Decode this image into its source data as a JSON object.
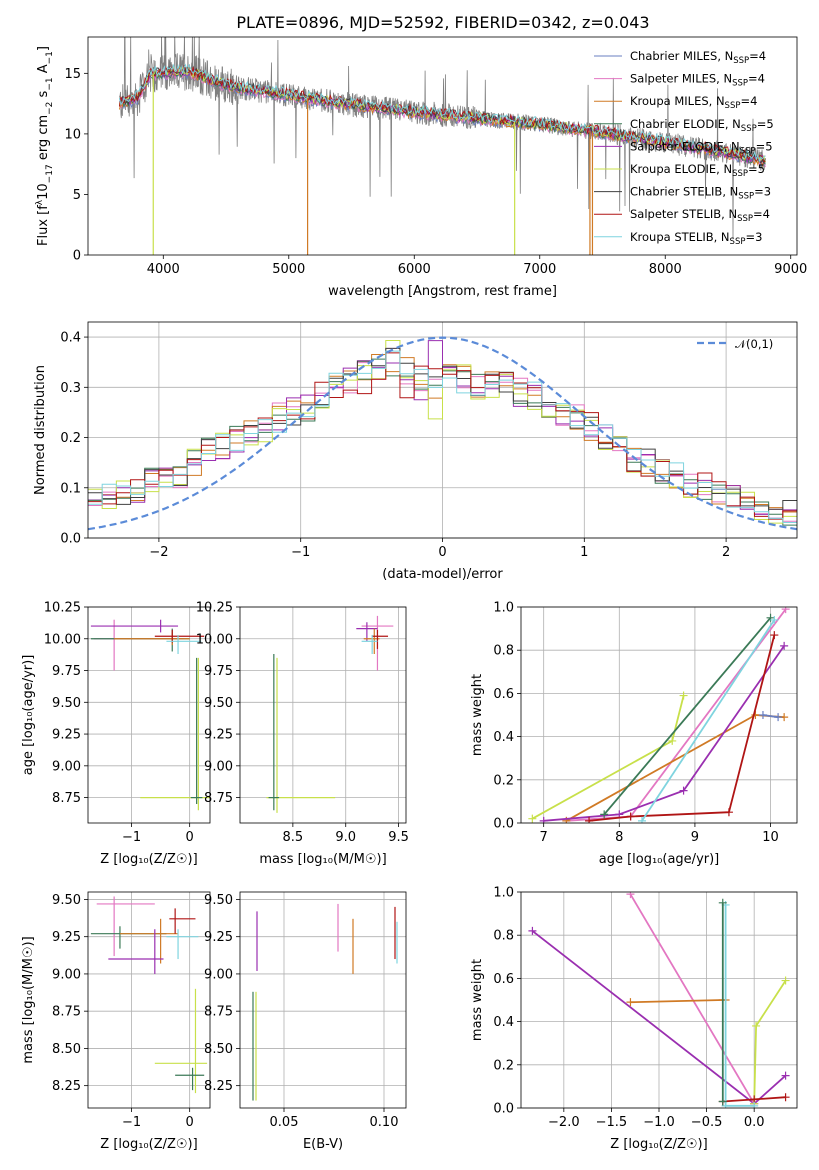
{
  "chart_data": [
    {
      "type": "line",
      "title": "PLATE=0896, MJD=52592, FIBERID=0342, z=0.043",
      "xlabel": "wavelength [Angstrom, rest frame]",
      "ylabel": "Flux [f$_\\lambda$10$^{-17}$ erg cm$^{-2}$ s$^{-1}$ A$^{-1}$]",
      "ylabel_parts": {
        "a": "Flux [f",
        "b": "λ",
        "c": "10",
        "d": "−17",
        "e": " erg cm",
        "f": "−2",
        "g": " s",
        "h": "−1",
        "i": " A",
        "j": "−1",
        "k": "]"
      },
      "xlim": [
        3400,
        9050
      ],
      "ylim": [
        0,
        18
      ],
      "xticks": [
        4000,
        5000,
        6000,
        7000,
        8000,
        9000
      ],
      "yticks": [
        0,
        5,
        10,
        15
      ],
      "legend_position": "top-right",
      "legend": [
        {
          "name": "Chabrier MILES, N",
          "sub": "SSP",
          "tail": "=4",
          "color": "#6a7fc0"
        },
        {
          "name": "Salpeter MILES, N",
          "sub": "SSP",
          "tail": "=4",
          "color": "#e377c2"
        },
        {
          "name": "Kroupa MILES, N",
          "sub": "SSP",
          "tail": "=4",
          "color": "#d07a25"
        },
        {
          "name": "Chabrier ELODIE, N",
          "sub": "SSP",
          "tail": "=5",
          "color": "#3b7a57"
        },
        {
          "name": "Salpeter ELODIE, N",
          "sub": "SSP",
          "tail": "=5",
          "color": "#9a2fb0"
        },
        {
          "name": "Kroupa ELODIE, N",
          "sub": "SSP",
          "tail": "=5",
          "color": "#c8e04a"
        },
        {
          "name": "Chabrier STELIB, N",
          "sub": "SSP",
          "tail": "=3",
          "color": "#404040"
        },
        {
          "name": "Salpeter STELIB, N",
          "sub": "SSP",
          "tail": "=4",
          "color": "#b01515"
        },
        {
          "name": "Kroupa STELIB, N",
          "sub": "SSP",
          "tail": "=3",
          "color": "#7fd4df"
        }
      ],
      "continuum": [
        [
          3650,
          12.5
        ],
        [
          3800,
          13.0
        ],
        [
          3900,
          15.0
        ],
        [
          4000,
          15.0
        ],
        [
          4200,
          15.2
        ],
        [
          4500,
          14.0
        ],
        [
          5000,
          13.2
        ],
        [
          5500,
          12.4
        ],
        [
          6000,
          11.8
        ],
        [
          6500,
          11.3
        ],
        [
          7000,
          10.8
        ],
        [
          7500,
          10.1
        ],
        [
          8000,
          9.3
        ],
        [
          8500,
          8.4
        ],
        [
          8800,
          7.8
        ]
      ],
      "dropouts": [
        [
          3920,
          0
        ],
        [
          5150,
          0
        ],
        [
          6800,
          0
        ],
        [
          7400,
          0
        ],
        [
          7420,
          0
        ]
      ]
    },
    {
      "type": "histogram",
      "xlabel": "(data-model)/error",
      "ylabel": "Normed distribution",
      "xlim": [
        -2.5,
        2.5
      ],
      "ylim": [
        0,
        0.43
      ],
      "xticks": [
        -2,
        -1,
        0,
        1,
        2
      ],
      "yticks": [
        0.0,
        0.1,
        0.2,
        0.3,
        0.4
      ],
      "legend_position": "top-right",
      "reference": {
        "name": "𝒩(0,1)",
        "color": "#5b8bd8",
        "style": "dashed"
      },
      "bin_edges": [
        -2.5,
        -2.4,
        -2.3,
        -2.2,
        -2.1,
        -2.0,
        -1.9,
        -1.8,
        -1.7,
        -1.6,
        -1.5,
        -1.4,
        -1.3,
        -1.2,
        -1.1,
        -1.0,
        -0.9,
        -0.8,
        -0.7,
        -0.6,
        -0.5,
        -0.4,
        -0.3,
        -0.2,
        -0.1,
        0.0,
        0.1,
        0.2,
        0.3,
        0.4,
        0.5,
        0.6,
        0.7,
        0.8,
        0.9,
        1.0,
        1.1,
        1.2,
        1.3,
        1.4,
        1.5,
        1.6,
        1.7,
        1.8,
        1.9,
        2.0,
        2.1,
        2.2,
        2.3,
        2.4,
        2.5
      ],
      "envelope": [
        0.075,
        0.08,
        0.09,
        0.1,
        0.11,
        0.13,
        0.12,
        0.15,
        0.17,
        0.18,
        0.2,
        0.21,
        0.22,
        0.24,
        0.25,
        0.26,
        0.28,
        0.3,
        0.31,
        0.33,
        0.34,
        0.35,
        0.33,
        0.32,
        0.31,
        0.32,
        0.31,
        0.3,
        0.31,
        0.3,
        0.29,
        0.28,
        0.27,
        0.25,
        0.24,
        0.22,
        0.2,
        0.18,
        0.16,
        0.15,
        0.13,
        0.12,
        0.11,
        0.1,
        0.09,
        0.08,
        0.07,
        0.06,
        0.055,
        0.05
      ]
    },
    {
      "type": "errorbar",
      "xlabel": "Z [log₁₀(Z/Z☉)]",
      "ylabel": "age  [log₁₀(age/yr)]",
      "xlim": [
        -1.75,
        0.35
      ],
      "ylim": [
        8.55,
        10.25
      ],
      "xticks": [
        -1,
        0
      ],
      "yticks": [
        8.75,
        9.0,
        9.25,
        9.5,
        9.75,
        10.0,
        10.25
      ]
    },
    {
      "type": "errorbar",
      "xlabel": "mass [log₁₀(M/M☉)]",
      "ylabel": "",
      "xlim": [
        8.0,
        9.57
      ],
      "ylim": [
        8.55,
        10.25
      ],
      "xticks": [
        8.5,
        9.0,
        9.5
      ],
      "yticks": [
        8.75,
        9.0,
        9.25,
        9.5,
        9.75,
        10.0,
        10.25
      ]
    },
    {
      "type": "line",
      "xlabel": "age  [log₁₀(age/yr)]",
      "ylabel": "mass weight",
      "xlim": [
        6.7,
        10.35
      ],
      "ylim": [
        0,
        1
      ],
      "xticks": [
        7,
        8,
        9,
        10
      ],
      "yticks": [
        0.0,
        0.2,
        0.4,
        0.6,
        0.8,
        1.0
      ],
      "series": [
        {
          "name": "Salpeter MILES",
          "x": [
            7.3,
            8.15,
            10.2
          ],
          "y": [
            0.01,
            0.03,
            0.99
          ]
        },
        {
          "name": "Kroupa ELODIE",
          "x": [
            6.85,
            8.7,
            8.85
          ],
          "y": [
            0.02,
            0.38,
            0.59
          ]
        },
        {
          "name": "Kroupa MILES",
          "x": [
            7.3,
            9.8,
            10.18
          ],
          "y": [
            0.01,
            0.5,
            0.49
          ]
        },
        {
          "name": "Salpeter ELODIE",
          "x": [
            7.0,
            8.0,
            8.85,
            10.18
          ],
          "y": [
            0.01,
            0.04,
            0.15,
            0.82
          ]
        },
        {
          "name": "Salpeter STELIB",
          "x": [
            7.6,
            8.15,
            9.45,
            10.05
          ],
          "y": [
            0.01,
            0.03,
            0.05,
            0.87
          ]
        },
        {
          "name": "Chabrier ELODIE",
          "x": [
            7.8,
            10.0
          ],
          "y": [
            0.04,
            0.95
          ]
        },
        {
          "name": "Kroupa STELIB",
          "x": [
            8.3,
            10.05
          ],
          "y": [
            0.01,
            0.94
          ]
        },
        {
          "name": "Chabrier MILES",
          "x": [
            9.9,
            10.1
          ],
          "y": [
            0.5,
            0.49
          ]
        }
      ]
    },
    {
      "type": "errorbar",
      "xlabel": "Z [log₁₀(Z/Z☉)]",
      "ylabel": "mass [log₁₀(M/M☉)]",
      "xlim": [
        -1.75,
        0.35
      ],
      "ylim": [
        8.1,
        9.55
      ],
      "xticks": [
        -1,
        0
      ],
      "yticks": [
        8.25,
        8.5,
        8.75,
        9.0,
        9.25,
        9.5
      ]
    },
    {
      "type": "errorbar",
      "xlabel": "E(B-V)",
      "ylabel": "",
      "xlim": [
        0.028,
        0.111
      ],
      "ylim": [
        8.1,
        9.55
      ],
      "xticks": [
        0.05,
        0.1
      ],
      "yticks": [
        8.25,
        8.5,
        8.75,
        9.0,
        9.25,
        9.5
      ]
    },
    {
      "type": "line",
      "xlabel": "Z [log₁₀(Z/Z☉)]",
      "ylabel": "mass weight",
      "xlim": [
        -2.45,
        0.45
      ],
      "ylim": [
        0,
        1
      ],
      "xticks": [
        -2.0,
        -1.5,
        -1.0,
        -0.5,
        0.0
      ],
      "yticks": [
        0.0,
        0.2,
        0.4,
        0.6,
        0.8,
        1.0
      ],
      "series": [
        {
          "name": "Salpeter ELODIE",
          "x": [
            -2.33,
            0.0,
            0.33
          ],
          "y": [
            0.82,
            0.02,
            0.15
          ]
        },
        {
          "name": "Salpeter MILES",
          "x": [
            -1.3,
            0.0
          ],
          "y": [
            0.99,
            0.02
          ]
        },
        {
          "name": "Kroupa MILES",
          "x": [
            -1.3,
            -0.33,
            -0.3
          ],
          "y": [
            0.49,
            0.5,
            0.5
          ]
        },
        {
          "name": "Kroupa ELODIE",
          "x": [
            0.0,
            0.02,
            0.33
          ],
          "y": [
            0.02,
            0.38,
            0.59
          ]
        },
        {
          "name": "Salpeter STELIB",
          "x": [
            -0.33,
            0.0,
            0.33
          ],
          "y": [
            0.03,
            0.04,
            0.05
          ]
        },
        {
          "name": "Kroupa STELIB",
          "x": [
            -0.3,
            -0.3,
            0.0
          ],
          "y": [
            0.94,
            0.01,
            0.01
          ]
        },
        {
          "name": "Chabrier ELODIE",
          "x": [
            -0.33,
            -0.33
          ],
          "y": [
            0.03,
            0.95
          ]
        }
      ]
    }
  ]
}
